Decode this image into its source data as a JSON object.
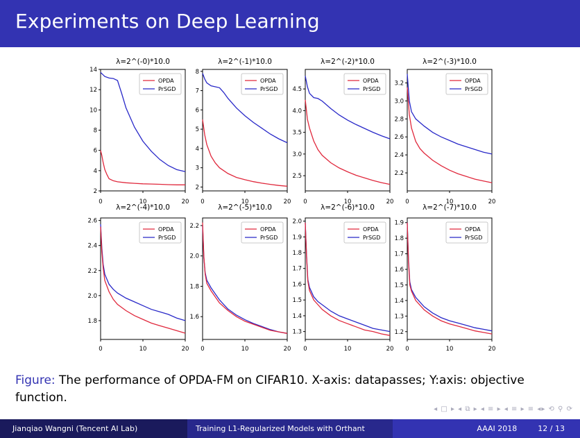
{
  "slide": {
    "title": "Experiments on Deep Learning",
    "caption_label": "Figure:",
    "caption_text": "The performance of OPDA-FM on CIFAR10. X-axis: datapasses; Y:axis: objective function.",
    "nav_symbols": "◂ □ ▸ ◂ ⧉ ▸ ◂ ≡ ▸ ◂ ≡ ▸ ≡ ◂▸ ⟲ ⚲ ⟳",
    "footer": {
      "author": "Jianqiao Wangni (Tencent AI Lab)",
      "talk_title": "Training L1-Regularized Models with Orthant",
      "venue": "AAAI 2018",
      "page": "12 / 13"
    }
  },
  "colors": {
    "header": "#3333b2",
    "opda": "#e0283c",
    "prsgd": "#2828c8"
  },
  "chart_data": [
    {
      "type": "line",
      "title": "λ=2^(-0)*10.0",
      "xlim": [
        0,
        20
      ],
      "xticks": [
        0,
        10,
        20
      ],
      "ylim": [
        2,
        14
      ],
      "yticks": [
        "2",
        "4",
        "6",
        "8",
        "10",
        "12",
        "14"
      ],
      "yvals": [
        2,
        4,
        6,
        8,
        10,
        12,
        14
      ],
      "legend": "top-right",
      "series": [
        {
          "name": "OPDA",
          "x": [
            0,
            0.3,
            0.6,
            1,
            1.5,
            2,
            3,
            4,
            6,
            8,
            10,
            12,
            14,
            16,
            18,
            20
          ],
          "y": [
            6.0,
            5.5,
            4.8,
            4.1,
            3.6,
            3.2,
            3.0,
            2.9,
            2.8,
            2.75,
            2.7,
            2.68,
            2.65,
            2.62,
            2.6,
            2.6
          ]
        },
        {
          "name": "PrSGD",
          "x": [
            0,
            0.5,
            1,
            2,
            3,
            4,
            5,
            6,
            8,
            10,
            12,
            14,
            16,
            18,
            20
          ],
          "y": [
            13.7,
            13.5,
            13.3,
            13.15,
            13.1,
            12.9,
            11.6,
            10.2,
            8.3,
            6.9,
            5.9,
            5.1,
            4.5,
            4.1,
            3.9
          ]
        }
      ]
    },
    {
      "type": "line",
      "title": "λ=2^(-1)*10.0",
      "xlim": [
        0,
        20
      ],
      "xticks": [
        0,
        10,
        20
      ],
      "ylim": [
        1.8,
        8.1
      ],
      "yticks": [
        "2",
        "3",
        "4",
        "5",
        "6",
        "7",
        "8"
      ],
      "yvals": [
        2,
        3,
        4,
        5,
        6,
        7,
        8
      ],
      "legend": "top-right",
      "series": [
        {
          "name": "OPDA",
          "x": [
            0,
            0.5,
            1,
            2,
            3,
            4,
            6,
            8,
            10,
            12,
            14,
            16,
            18,
            20
          ],
          "y": [
            5.5,
            4.7,
            4.2,
            3.6,
            3.25,
            3.0,
            2.7,
            2.5,
            2.38,
            2.28,
            2.2,
            2.14,
            2.08,
            2.04
          ]
        },
        {
          "name": "PrSGD",
          "x": [
            0,
            0.5,
            1,
            2,
            3,
            4,
            5,
            6,
            8,
            10,
            12,
            14,
            16,
            18,
            20
          ],
          "y": [
            7.9,
            7.6,
            7.4,
            7.25,
            7.2,
            7.15,
            6.9,
            6.6,
            6.1,
            5.7,
            5.35,
            5.05,
            4.75,
            4.5,
            4.3
          ]
        }
      ]
    },
    {
      "type": "line",
      "title": "λ=2^(-2)*10.0",
      "xlim": [
        0,
        20
      ],
      "xticks": [
        0,
        10,
        20
      ],
      "ylim": [
        2.15,
        4.95
      ],
      "yticks": [
        "2.5",
        "3.0",
        "3.5",
        "4.0",
        "4.5"
      ],
      "yvals": [
        2.5,
        3.0,
        3.5,
        4.0,
        4.5
      ],
      "legend": "top-right",
      "series": [
        {
          "name": "OPDA",
          "x": [
            0,
            0.5,
            1,
            2,
            3,
            4,
            6,
            8,
            10,
            12,
            14,
            16,
            18,
            20
          ],
          "y": [
            4.25,
            3.8,
            3.6,
            3.3,
            3.1,
            2.97,
            2.8,
            2.68,
            2.59,
            2.51,
            2.45,
            2.39,
            2.34,
            2.3
          ]
        },
        {
          "name": "PrSGD",
          "x": [
            0,
            0.5,
            1,
            2,
            3,
            4,
            6,
            8,
            10,
            12,
            14,
            16,
            18,
            20
          ],
          "y": [
            4.8,
            4.55,
            4.4,
            4.3,
            4.28,
            4.22,
            4.05,
            3.9,
            3.78,
            3.68,
            3.59,
            3.5,
            3.42,
            3.35
          ]
        }
      ]
    },
    {
      "type": "line",
      "title": "λ=2^(-3)*10.0",
      "xlim": [
        0,
        20
      ],
      "xticks": [
        0,
        10,
        20
      ],
      "ylim": [
        2.0,
        3.35
      ],
      "yticks": [
        "2.2",
        "2.4",
        "2.6",
        "2.8",
        "3.0",
        "3.2"
      ],
      "yvals": [
        2.2,
        2.4,
        2.6,
        2.8,
        3.0,
        3.2
      ],
      "legend": "top-right",
      "series": [
        {
          "name": "OPDA",
          "x": [
            0,
            0.5,
            1,
            2,
            3,
            4,
            6,
            8,
            10,
            12,
            14,
            16,
            18,
            20
          ],
          "y": [
            3.15,
            2.85,
            2.7,
            2.55,
            2.47,
            2.42,
            2.34,
            2.28,
            2.23,
            2.19,
            2.16,
            2.13,
            2.11,
            2.09
          ]
        },
        {
          "name": "PrSGD",
          "x": [
            0,
            0.5,
            1,
            2,
            3,
            4,
            6,
            8,
            10,
            12,
            14,
            16,
            18,
            20
          ],
          "y": [
            3.3,
            3.0,
            2.88,
            2.8,
            2.76,
            2.72,
            2.65,
            2.6,
            2.56,
            2.52,
            2.49,
            2.46,
            2.43,
            2.41
          ]
        }
      ]
    },
    {
      "type": "line",
      "title": "λ=2^(-4)*10.0",
      "xlim": [
        0,
        20
      ],
      "xticks": [
        0,
        10,
        20
      ],
      "ylim": [
        1.65,
        2.62
      ],
      "yticks": [
        "1.8",
        "2.0",
        "2.2",
        "2.4",
        "2.6"
      ],
      "yvals": [
        1.8,
        2.0,
        2.2,
        2.4,
        2.6
      ],
      "legend": "top-right",
      "series": [
        {
          "name": "OPDA",
          "x": [
            0,
            0.3,
            0.6,
            1,
            2,
            3,
            4,
            6,
            8,
            10,
            12,
            14,
            16,
            18,
            20
          ],
          "y": [
            2.55,
            2.35,
            2.22,
            2.12,
            2.03,
            1.97,
            1.93,
            1.88,
            1.84,
            1.81,
            1.78,
            1.76,
            1.74,
            1.72,
            1.7
          ]
        },
        {
          "name": "PrSGD",
          "x": [
            0,
            0.3,
            0.6,
            1,
            2,
            3,
            4,
            6,
            8,
            10,
            12,
            14,
            16,
            18,
            20
          ],
          "y": [
            2.57,
            2.38,
            2.25,
            2.17,
            2.09,
            2.05,
            2.02,
            1.98,
            1.95,
            1.92,
            1.89,
            1.87,
            1.85,
            1.82,
            1.8
          ]
        }
      ]
    },
    {
      "type": "line",
      "title": "λ=2^(-5)*10.0",
      "xlim": [
        0,
        20
      ],
      "xticks": [
        0,
        10,
        20
      ],
      "ylim": [
        1.45,
        2.25
      ],
      "yticks": [
        "1.6",
        "1.8",
        "2.0",
        "2.2"
      ],
      "yvals": [
        1.6,
        1.8,
        2.0,
        2.2
      ],
      "legend": "top-right",
      "series": [
        {
          "name": "OPDA",
          "x": [
            0,
            0.3,
            0.6,
            1,
            2,
            3,
            4,
            6,
            8,
            10,
            12,
            14,
            16,
            18,
            20
          ],
          "y": [
            2.22,
            2.0,
            1.88,
            1.82,
            1.77,
            1.73,
            1.69,
            1.64,
            1.6,
            1.57,
            1.55,
            1.53,
            1.51,
            1.5,
            1.49
          ]
        },
        {
          "name": "PrSGD",
          "x": [
            0,
            0.3,
            0.6,
            1,
            2,
            3,
            4,
            6,
            8,
            10,
            12,
            14,
            16,
            18,
            20
          ],
          "y": [
            2.2,
            1.99,
            1.89,
            1.84,
            1.79,
            1.75,
            1.71,
            1.65,
            1.61,
            1.58,
            1.555,
            1.535,
            1.515,
            1.5,
            1.49
          ]
        }
      ]
    },
    {
      "type": "line",
      "title": "λ=2^(-6)*10.0",
      "xlim": [
        0,
        20
      ],
      "xticks": [
        0,
        10,
        20
      ],
      "ylim": [
        1.25,
        2.02
      ],
      "yticks": [
        "1.3",
        "1.4",
        "1.5",
        "1.6",
        "1.7",
        "1.8",
        "1.9",
        "2.0"
      ],
      "yvals": [
        1.3,
        1.4,
        1.5,
        1.6,
        1.7,
        1.8,
        1.9,
        2.0
      ],
      "legend": "top-right",
      "series": [
        {
          "name": "OPDA",
          "x": [
            0,
            0.3,
            0.6,
            1,
            2,
            3,
            4,
            6,
            8,
            10,
            12,
            14,
            16,
            18,
            20
          ],
          "y": [
            1.99,
            1.78,
            1.62,
            1.56,
            1.5,
            1.47,
            1.44,
            1.4,
            1.37,
            1.35,
            1.33,
            1.31,
            1.3,
            1.285,
            1.275
          ]
        },
        {
          "name": "PrSGD",
          "x": [
            0,
            0.3,
            0.6,
            1,
            2,
            3,
            4,
            6,
            8,
            10,
            12,
            14,
            16,
            18,
            20
          ],
          "y": [
            1.99,
            1.79,
            1.63,
            1.58,
            1.52,
            1.49,
            1.47,
            1.43,
            1.4,
            1.38,
            1.36,
            1.34,
            1.32,
            1.31,
            1.3
          ]
        }
      ]
    },
    {
      "type": "line",
      "title": "λ=2^(-7)*10.0",
      "xlim": [
        0,
        20
      ],
      "xticks": [
        0,
        10,
        20
      ],
      "ylim": [
        1.15,
        1.93
      ],
      "yticks": [
        "1.2",
        "1.3",
        "1.4",
        "1.5",
        "1.6",
        "1.7",
        "1.8",
        "1.9"
      ],
      "yvals": [
        1.2,
        1.3,
        1.4,
        1.5,
        1.6,
        1.7,
        1.8,
        1.9
      ],
      "legend": "top-right",
      "series": [
        {
          "name": "OPDA",
          "x": [
            0,
            0.3,
            0.6,
            1,
            2,
            3,
            4,
            6,
            8,
            10,
            12,
            14,
            16,
            18,
            20
          ],
          "y": [
            1.9,
            1.65,
            1.5,
            1.46,
            1.4,
            1.37,
            1.34,
            1.3,
            1.27,
            1.25,
            1.235,
            1.22,
            1.205,
            1.195,
            1.185
          ]
        },
        {
          "name": "PrSGD",
          "x": [
            0,
            0.3,
            0.6,
            1,
            2,
            3,
            4,
            6,
            8,
            10,
            12,
            14,
            16,
            18,
            20
          ],
          "y": [
            1.9,
            1.66,
            1.52,
            1.47,
            1.42,
            1.39,
            1.36,
            1.32,
            1.29,
            1.27,
            1.255,
            1.24,
            1.225,
            1.215,
            1.205
          ]
        }
      ]
    }
  ]
}
